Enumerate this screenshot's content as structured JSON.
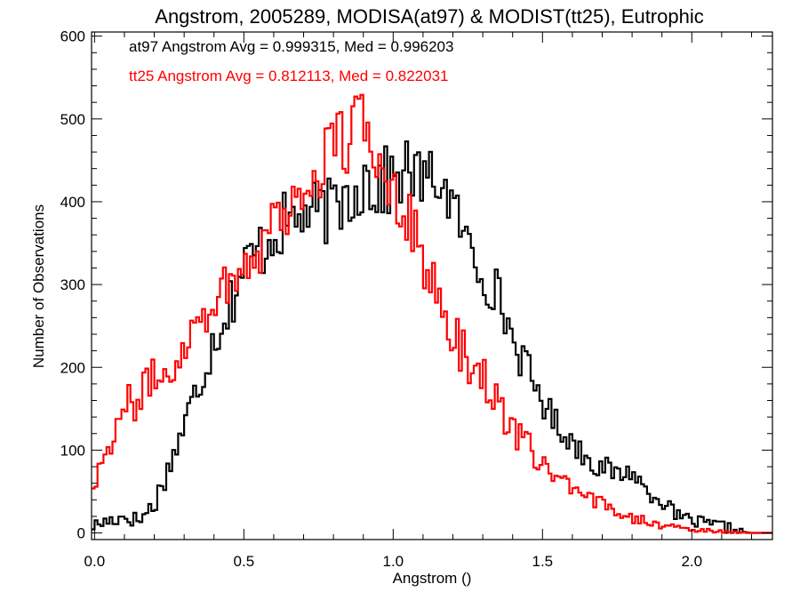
{
  "chart_data": {
    "type": "line",
    "title": "Angstrom, 2005289, MODISA(at97) & MODIST(tt25), Eutrophic",
    "xlabel": "Angstrom ()",
    "ylabel": "Number of Observations",
    "xlim": [
      -0.01,
      2.27
    ],
    "ylim": [
      -8,
      605
    ],
    "xticks": [
      "0.0",
      "0.5",
      "1.0",
      "1.5",
      "2.0"
    ],
    "xtick_values": [
      0.0,
      0.5,
      1.0,
      1.5,
      2.0
    ],
    "yticks": [
      "0",
      "100",
      "200",
      "300",
      "400",
      "500",
      "600"
    ],
    "ytick_values": [
      0,
      100,
      200,
      300,
      400,
      500,
      600
    ],
    "grid": false,
    "step_style": "histogram",
    "bin_width": 0.01,
    "annotations": [
      {
        "text": "at97 Angstrom Avg = 0.999315, Med = 0.996203",
        "color": "#000000"
      },
      {
        "text": "tt25 Angstrom Avg = 0.812113, Med = 0.822031",
        "color": "#ff0000"
      }
    ],
    "series": [
      {
        "color": "#000000",
        "x": [
          -0.01,
          0.05,
          0.1,
          0.15,
          0.2,
          0.25,
          0.3,
          0.35,
          0.4,
          0.45,
          0.5,
          0.55,
          0.6,
          0.65,
          0.7,
          0.75,
          0.8,
          0.85,
          0.9,
          0.95,
          1.0,
          1.05,
          1.1,
          1.15,
          1.2,
          1.25,
          1.3,
          1.35,
          1.4,
          1.45,
          1.5,
          1.55,
          1.6,
          1.65,
          1.7,
          1.75,
          1.8,
          1.85,
          1.9,
          1.95,
          2.0,
          2.05,
          2.1,
          2.15,
          2.2,
          2.27
        ],
        "values": [
          8,
          15,
          20,
          15,
          35,
          80,
          130,
          180,
          235,
          275,
          320,
          340,
          365,
          375,
          385,
          385,
          390,
          410,
          430,
          420,
          425,
          440,
          425,
          430,
          395,
          350,
          310,
          290,
          235,
          195,
          160,
          130,
          110,
          90,
          80,
          70,
          75,
          50,
          40,
          20,
          15,
          10,
          8,
          3,
          0,
          0
        ],
        "jitter": [
          8,
          10,
          10,
          10,
          15,
          15,
          22,
          28,
          30,
          35,
          40,
          40,
          40,
          40,
          40,
          40,
          40,
          45,
          50,
          50,
          40,
          40,
          35,
          35,
          30,
          30,
          30,
          30,
          25,
          25,
          20,
          18,
          15,
          15,
          15,
          12,
          12,
          10,
          10,
          8,
          8,
          8,
          8,
          5,
          0,
          0
        ]
      },
      {
        "color": "#ff0000",
        "x": [
          -0.01,
          0.05,
          0.1,
          0.15,
          0.2,
          0.25,
          0.3,
          0.35,
          0.4,
          0.45,
          0.5,
          0.55,
          0.6,
          0.65,
          0.7,
          0.75,
          0.8,
          0.85,
          0.9,
          0.95,
          1.0,
          1.05,
          1.1,
          1.15,
          1.2,
          1.25,
          1.3,
          1.35,
          1.4,
          1.45,
          1.5,
          1.55,
          1.6,
          1.65,
          1.7,
          1.75,
          1.8,
          1.85,
          1.9,
          1.95,
          2.0,
          2.05,
          2.1,
          2.15,
          2.2,
          2.27
        ],
        "values": [
          55,
          110,
          150,
          165,
          190,
          190,
          230,
          260,
          280,
          305,
          320,
          345,
          380,
          395,
          410,
          440,
          465,
          480,
          485,
          455,
          420,
          390,
          330,
          280,
          240,
          210,
          190,
          160,
          120,
          105,
          85,
          65,
          50,
          40,
          35,
          28,
          20,
          15,
          10,
          5,
          4,
          3,
          2,
          1,
          0,
          0
        ],
        "jitter": [
          15,
          20,
          25,
          25,
          22,
          22,
          25,
          30,
          30,
          30,
          30,
          35,
          40,
          45,
          45,
          50,
          55,
          55,
          55,
          40,
          40,
          40,
          35,
          30,
          30,
          30,
          25,
          22,
          20,
          18,
          15,
          15,
          10,
          10,
          10,
          8,
          8,
          6,
          5,
          4,
          3,
          2,
          2,
          1,
          0,
          0
        ]
      }
    ]
  }
}
